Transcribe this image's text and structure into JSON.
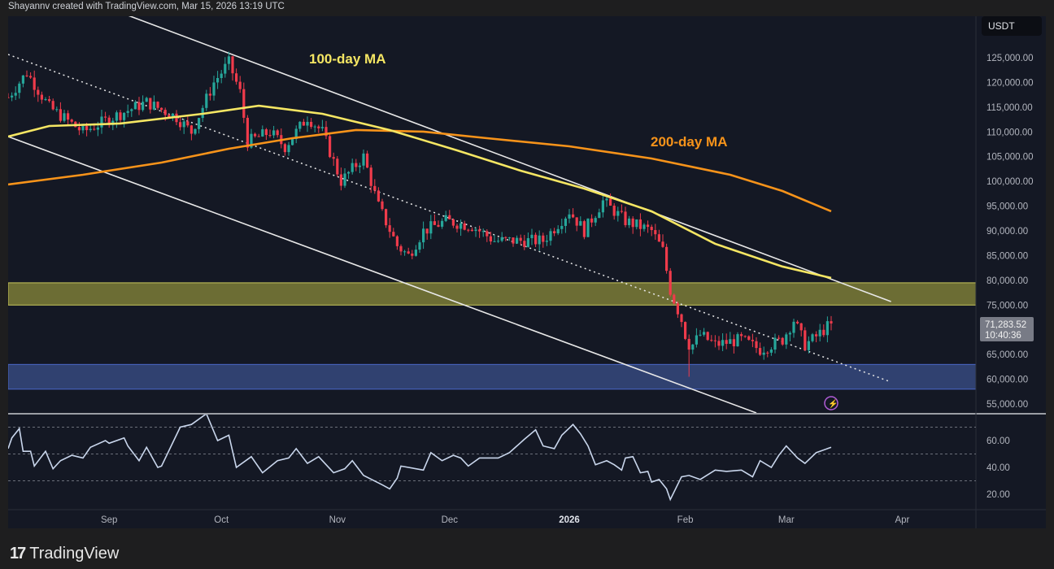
{
  "header": {
    "attribution": "Shayannv created with TradingView.com, Mar 15, 2026 13:19 UTC"
  },
  "footer": {
    "logo_text": "TradingView"
  },
  "chart_data": {
    "type": "candlestick",
    "currency_label": "USDT",
    "price_axis": {
      "ticks": [
        "125,000.00",
        "120,000.00",
        "115,000.00",
        "110,000.00",
        "105,000.00",
        "100,000.00",
        "95,000.00",
        "90,000.00",
        "85,000.00",
        "80,000.00",
        "75,000.00",
        "65,000.00",
        "60,000.00",
        "55,000.00"
      ],
      "tick_values": [
        125000,
        120000,
        115000,
        110000,
        105000,
        100000,
        95000,
        90000,
        85000,
        80000,
        75000,
        65000,
        60000,
        55000
      ],
      "range": [
        55000,
        125000
      ]
    },
    "current_price": {
      "value": "71,283.52",
      "countdown": "10:40:36"
    },
    "time_axis": {
      "labels": [
        "Sep",
        "Oct",
        "Nov",
        "Dec",
        "2026",
        "Feb",
        "Mar",
        "Apr"
      ],
      "label_days": [
        27,
        57,
        88,
        118,
        150,
        181,
        208,
        239
      ],
      "bold": "2026"
    },
    "price_points": [
      [
        0,
        117000
      ],
      [
        5,
        122000
      ],
      [
        11,
        115000
      ],
      [
        20,
        110000
      ],
      [
        28,
        113000
      ],
      [
        37,
        116000
      ],
      [
        45,
        113000
      ],
      [
        49,
        110000
      ],
      [
        55,
        120000
      ],
      [
        59,
        124000
      ],
      [
        62,
        118000
      ],
      [
        64,
        108000
      ],
      [
        70,
        110000
      ],
      [
        74,
        107000
      ],
      [
        80,
        113000
      ],
      [
        84,
        110000
      ],
      [
        89,
        100000
      ],
      [
        95,
        105000
      ],
      [
        99,
        95000
      ],
      [
        104,
        87000
      ],
      [
        107,
        85000
      ],
      [
        111,
        90000
      ],
      [
        117,
        92000
      ],
      [
        124,
        91000
      ],
      [
        130,
        88000
      ],
      [
        137,
        88000
      ],
      [
        143,
        88000
      ],
      [
        150,
        94000
      ],
      [
        154,
        90000
      ],
      [
        159,
        96000
      ],
      [
        165,
        92000
      ],
      [
        172,
        90000
      ],
      [
        175,
        86000
      ],
      [
        177,
        78000
      ],
      [
        180,
        72000
      ],
      [
        182,
        66000
      ],
      [
        185,
        69000
      ],
      [
        189,
        67000
      ],
      [
        196,
        68000
      ],
      [
        201,
        66000
      ],
      [
        207,
        68000
      ],
      [
        210,
        72000
      ],
      [
        213,
        67000
      ],
      [
        215,
        68000
      ],
      [
        220,
        71283.52
      ]
    ],
    "ma_100": {
      "label": "100-day MA",
      "color": "#f5e663",
      "points": [
        [
          0,
          109060
        ],
        [
          11,
          111200
        ],
        [
          30,
          111700
        ],
        [
          52,
          113660
        ],
        [
          67,
          115300
        ],
        [
          84,
          113660
        ],
        [
          102,
          110380
        ],
        [
          120,
          106270
        ],
        [
          137,
          102160
        ],
        [
          154,
          98550
        ],
        [
          172,
          93950
        ],
        [
          189,
          87380
        ],
        [
          207,
          82780
        ],
        [
          220,
          80480
        ]
      ]
    },
    "ma_200": {
      "label": "200-day MA",
      "color": "#f7931a",
      "points": [
        [
          0,
          99370
        ],
        [
          20,
          101340
        ],
        [
          41,
          103800
        ],
        [
          59,
          106600
        ],
        [
          76,
          108730
        ],
        [
          93,
          110380
        ],
        [
          111,
          110050
        ],
        [
          128,
          108730
        ],
        [
          150,
          107090
        ],
        [
          172,
          104630
        ],
        [
          193,
          101340
        ],
        [
          207,
          98050
        ],
        [
          220,
          93950
        ]
      ]
    },
    "channel": {
      "upper": [
        [
          28,
          134700
        ],
        [
          236,
          75700
        ]
      ],
      "middle": [
        [
          0,
          125660
        ],
        [
          236,
          59440
        ]
      ],
      "lower": [
        [
          0,
          109060
        ],
        [
          200,
          53200
        ]
      ]
    },
    "zones": [
      {
        "name": "resistance",
        "low": 75000,
        "high": 79500,
        "color": "#8a8a3a"
      },
      {
        "name": "support",
        "low": 58000,
        "high": 63000,
        "color": "#3a4f8a"
      }
    ],
    "rsi": {
      "ticks": [
        "60.00",
        "40.00",
        "20.00"
      ],
      "tick_values": [
        60,
        40,
        20
      ],
      "levels": [
        70,
        50,
        30
      ],
      "points": [
        [
          0,
          54
        ],
        [
          1,
          62
        ],
        [
          3,
          69
        ],
        [
          4,
          52
        ],
        [
          6,
          52
        ],
        [
          7,
          41
        ],
        [
          10,
          52
        ],
        [
          12,
          39
        ],
        [
          14,
          45
        ],
        [
          17,
          49
        ],
        [
          20,
          47
        ],
        [
          22,
          55
        ],
        [
          26,
          60
        ],
        [
          27,
          58
        ],
        [
          31,
          62
        ],
        [
          32,
          56
        ],
        [
          35,
          45
        ],
        [
          37,
          55
        ],
        [
          40,
          40
        ],
        [
          41,
          41
        ],
        [
          46,
          70
        ],
        [
          49,
          72
        ],
        [
          53,
          80
        ],
        [
          56,
          60
        ],
        [
          59,
          64
        ],
        [
          61,
          40
        ],
        [
          65,
          48
        ],
        [
          68,
          36
        ],
        [
          72,
          45
        ],
        [
          75,
          47
        ],
        [
          77,
          54
        ],
        [
          80,
          43
        ],
        [
          83,
          48
        ],
        [
          87,
          36
        ],
        [
          90,
          39
        ],
        [
          92,
          45
        ],
        [
          95,
          34
        ],
        [
          100,
          27
        ],
        [
          102,
          24
        ],
        [
          104,
          32
        ],
        [
          105,
          41
        ],
        [
          111,
          38
        ],
        [
          113,
          51
        ],
        [
          116,
          45
        ],
        [
          119,
          49
        ],
        [
          121,
          47
        ],
        [
          123,
          41
        ],
        [
          126,
          47
        ],
        [
          131,
          47
        ],
        [
          134,
          51
        ],
        [
          138,
          61
        ],
        [
          141,
          68
        ],
        [
          143,
          56
        ],
        [
          146,
          54
        ],
        [
          148,
          64
        ],
        [
          151,
          72
        ],
        [
          153,
          65
        ],
        [
          155,
          56
        ],
        [
          157,
          42
        ],
        [
          160,
          45
        ],
        [
          162,
          42
        ],
        [
          164,
          38
        ],
        [
          165,
          47
        ],
        [
          167,
          48
        ],
        [
          169,
          36
        ],
        [
          171,
          37
        ],
        [
          172,
          29
        ],
        [
          174,
          31
        ],
        [
          176,
          24
        ],
        [
          177,
          16
        ],
        [
          180,
          33
        ],
        [
          182,
          34
        ],
        [
          185,
          31
        ],
        [
          189,
          38
        ],
        [
          192,
          37
        ],
        [
          196,
          38
        ],
        [
          199,
          33
        ],
        [
          201,
          45
        ],
        [
          204,
          40
        ],
        [
          206,
          49
        ],
        [
          208,
          56
        ],
        [
          211,
          47
        ],
        [
          213,
          43
        ],
        [
          216,
          51
        ],
        [
          219,
          54
        ],
        [
          220,
          55
        ]
      ]
    }
  }
}
